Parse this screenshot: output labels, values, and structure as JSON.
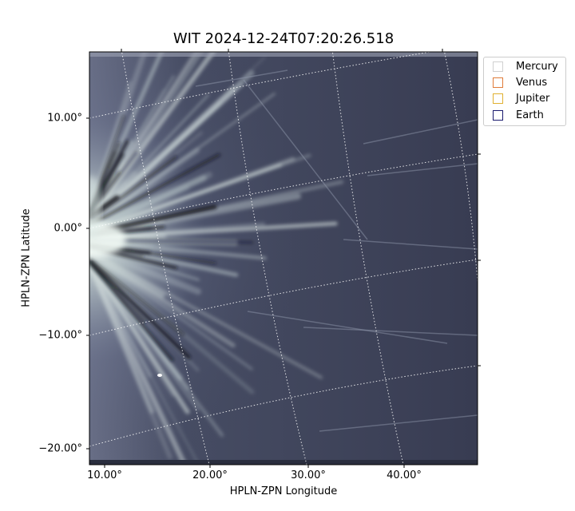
{
  "figure": {
    "title": "WIT 2024-12-24T07:20:26.518",
    "x_axis_label": "HPLN-ZPN Longitude",
    "y_axis_label": "HPLN-ZPN Latitude",
    "x_ticks": [
      {
        "label": "10.00°",
        "value": 10
      },
      {
        "label": "20.00°",
        "value": 20
      },
      {
        "label": "30.00°",
        "value": 30
      },
      {
        "label": "40.00°",
        "value": 40
      }
    ],
    "y_ticks": [
      {
        "label": "10.00°",
        "value": 10
      },
      {
        "label": "0.00°",
        "value": 0
      },
      {
        "label": "−10.00°",
        "value": -10
      },
      {
        "label": "−20.00°",
        "value": -20
      }
    ],
    "legend": [
      {
        "label": "Mercury",
        "color": "#d0d0d0"
      },
      {
        "label": "Venus",
        "color": "#e07b39"
      },
      {
        "label": "Jupiter",
        "color": "#e0b030"
      },
      {
        "label": "Earth",
        "color": "#1a1a6e"
      }
    ],
    "colors": {
      "background": "#3a3f55",
      "bright": "#eef5f0",
      "dark": "#14161f"
    }
  }
}
